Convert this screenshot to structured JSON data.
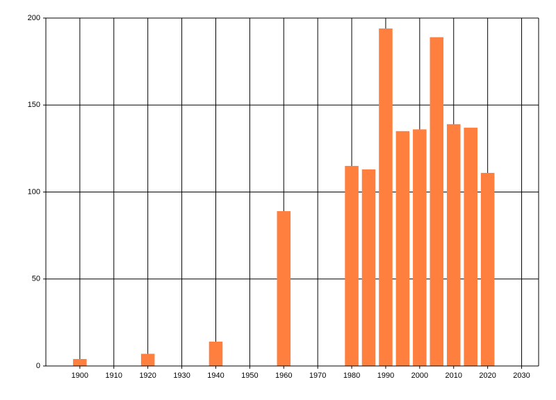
{
  "chart_data": {
    "type": "bar",
    "x": [
      1900,
      1920,
      1940,
      1960,
      1980,
      1985,
      1990,
      1995,
      2000,
      2005,
      2010,
      2015,
      2020
    ],
    "values": [
      4,
      7,
      14,
      89,
      115,
      113,
      194,
      135,
      136,
      189,
      139,
      137,
      111
    ],
    "color": "#ff7f3f",
    "xlim": [
      1890,
      2035
    ],
    "xticks": [
      1900,
      1910,
      1920,
      1930,
      1940,
      1950,
      1960,
      1970,
      1980,
      1990,
      2000,
      2010,
      2020,
      2030
    ],
    "ylim": [
      0,
      200
    ],
    "yticks": [
      0,
      50,
      100,
      150,
      200
    ],
    "grid": true
  }
}
